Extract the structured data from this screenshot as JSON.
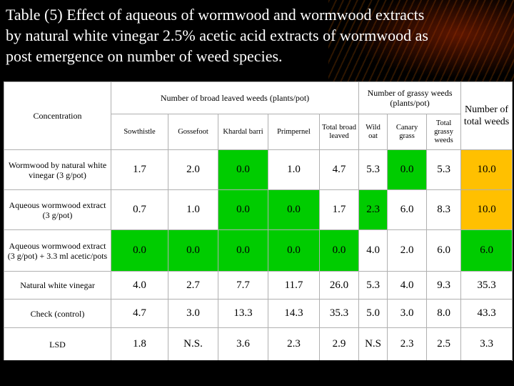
{
  "title_lines": [
    "Table (5) Effect of aqueous of wormwood  and wormwood  extracts",
    "by natural white vinegar 2.5% acetic acid extracts of wormwood as",
    "post emergence on number of weed species."
  ],
  "header": {
    "concentration": "Concentration",
    "broad_group": "Number of broad leaved weeds (plants/pot)",
    "grassy_group": "Number of grassy weeds (plants/pot)",
    "total": "Number of total weeds",
    "columns": [
      "Sowthistle",
      "Gossefoot",
      "Khardal barri",
      "Primpernel",
      "Total broad leaved",
      "Wild oat",
      "Canary grass",
      "Total grassy weeds"
    ]
  },
  "rows": [
    {
      "label": "Wormwood by natural white vinegar (3 g/pot)",
      "values": [
        "1.7",
        "2.0",
        "0.0",
        "1.0",
        "4.7",
        "5.3",
        "0.0",
        "5.3",
        "10.0"
      ]
    },
    {
      "label": "Aqueous wormwood extract (3 g/pot)",
      "values": [
        "0.7",
        "1.0",
        "0.0",
        "0.0",
        "1.7",
        "2.3",
        "6.0",
        "8.3",
        "10.0"
      ]
    },
    {
      "label": "Aqueous wormwood extract (3 g/pot) + 3.3 ml acetic/pots",
      "values": [
        "0.0",
        "0.0",
        "0.0",
        "0.0",
        "0.0",
        "4.0",
        "2.0",
        "6.0",
        "6.0"
      ]
    },
    {
      "label": "Natural white vinegar",
      "values": [
        "4.0",
        "2.7",
        "7.7",
        "11.7",
        "26.0",
        "5.3",
        "4.0",
        "9.3",
        "35.3"
      ]
    },
    {
      "label": "Check (control)",
      "values": [
        "4.7",
        "3.0",
        "13.3",
        "14.3",
        "35.3",
        "5.0",
        "3.0",
        "8.0",
        "43.3"
      ]
    },
    {
      "label": "LSD",
      "values": [
        "1.8",
        "N.S.",
        "3.6",
        "2.3",
        "2.9",
        "N.S",
        "2.3",
        "2.5",
        "3.3"
      ]
    }
  ],
  "highlight_colors": {
    "green": "#00cc00",
    "orange": "#ffc000"
  }
}
